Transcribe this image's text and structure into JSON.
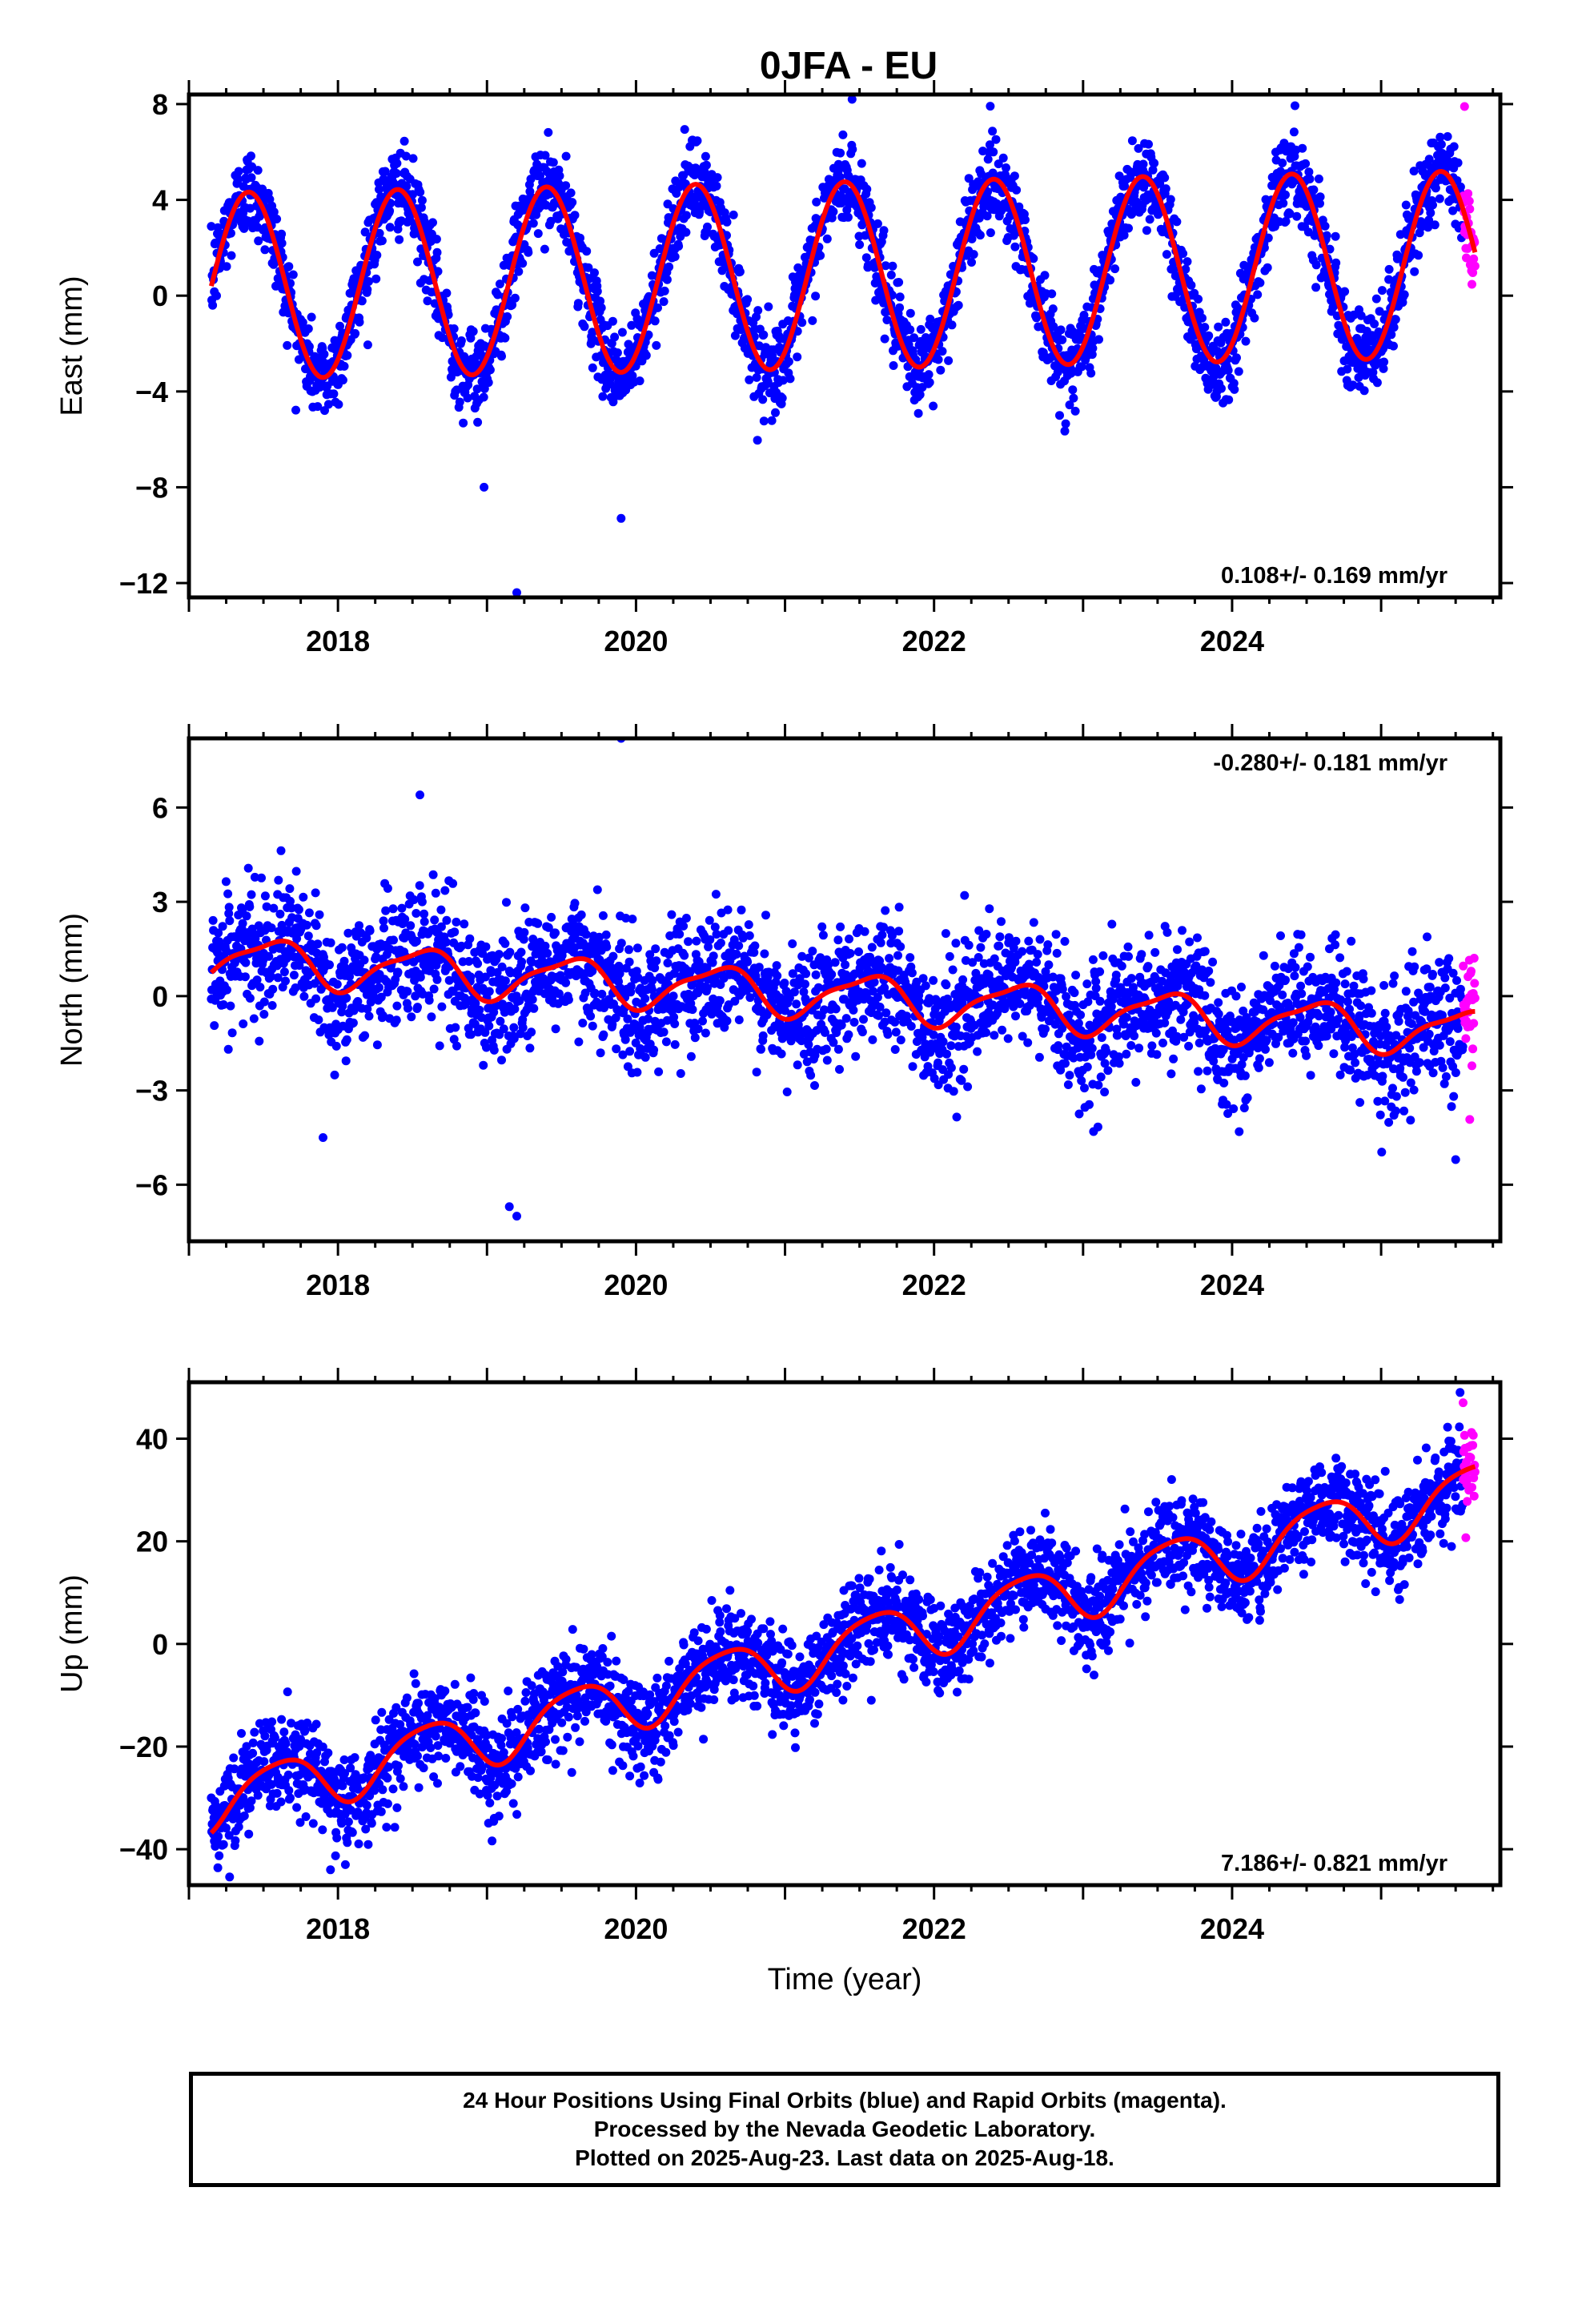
{
  "title": "0JFA - EU",
  "xlabel": "Time (year)",
  "x_ticks": [
    2018,
    2020,
    2022,
    2024
  ],
  "x_range": [
    2017.0,
    2025.8
  ],
  "colors": {
    "final": "#0000ff",
    "rapid": "#ff00ff",
    "fit": "#ff0000"
  },
  "caption": [
    "24 Hour Positions Using Final Orbits (blue) and Rapid Orbits (magenta).",
    "Processed by the Nevada Geodetic Laboratory.",
    "Plotted on 2025-Aug-23. Last data on 2025-Aug-18."
  ],
  "chart_data": [
    {
      "type": "scatter",
      "component": "east",
      "ylabel": "East (mm)",
      "ylim": [
        -12.6,
        8.4
      ],
      "y_ticks": [
        -12,
        -8,
        -4,
        0,
        4,
        8
      ],
      "rate": "0.108+/- 0.169 mm/yr",
      "rate_position": "bottom-right",
      "x_start": 2017.15,
      "x_end": 2025.63,
      "rapid_start": 2025.55,
      "fit": {
        "offset": 0.4,
        "trend": 0.108,
        "ann_amp": 3.9,
        "ann_phase": 0.15,
        "semi_amp": 0.0,
        "semi_phase": 0.0
      },
      "scatter_sigma": 0.9,
      "outliers": [
        [
          2019.2,
          -12.4
        ],
        [
          2019.9,
          -9.3
        ],
        [
          2021.45,
          8.2
        ],
        [
          2025.56,
          7.9
        ],
        [
          2018.98,
          -8.0
        ]
      ]
    },
    {
      "type": "scatter",
      "component": "north",
      "ylabel": "North (mm)",
      "ylim": [
        -7.8,
        8.2
      ],
      "y_ticks": [
        -6,
        -3,
        0,
        3,
        6
      ],
      "rate": "-0.280+/- 0.181 mm/yr",
      "rate_position": "top-right",
      "x_start": 2017.15,
      "x_end": 2025.63,
      "rapid_start": 2025.55,
      "fit": {
        "offset": 1.2,
        "trend": -0.28,
        "ann_amp": 0.7,
        "ann_phase": 0.3,
        "semi_amp": 0.2,
        "semi_phase": 0.1
      },
      "scatter_sigma": 1.0,
      "outliers": [
        [
          2019.9,
          8.2
        ],
        [
          2018.55,
          6.4
        ],
        [
          2019.2,
          -7.0
        ],
        [
          2019.15,
          -6.7
        ],
        [
          2017.9,
          -4.5
        ],
        [
          2025.5,
          -5.2
        ]
      ]
    },
    {
      "type": "scatter",
      "component": "up",
      "ylabel": "Up (mm)",
      "ylim": [
        -47,
        51
      ],
      "y_ticks": [
        -40,
        -20,
        0,
        20,
        40
      ],
      "rate": "7.186+/- 0.821 mm/yr",
      "rate_position": "bottom-right",
      "x_start": 2017.15,
      "x_end": 2025.63,
      "rapid_start": 2025.55,
      "fit": {
        "offset": -31,
        "trend": 7.186,
        "ann_amp": 5.5,
        "ann_phase": 0.35,
        "semi_amp": 1.0,
        "semi_phase": 0.2
      },
      "scatter_sigma": 4.5,
      "outliers": [
        [
          2025.53,
          49
        ],
        [
          2025.55,
          47
        ],
        [
          2017.95,
          -44
        ],
        [
          2018.05,
          -43
        ]
      ]
    }
  ]
}
